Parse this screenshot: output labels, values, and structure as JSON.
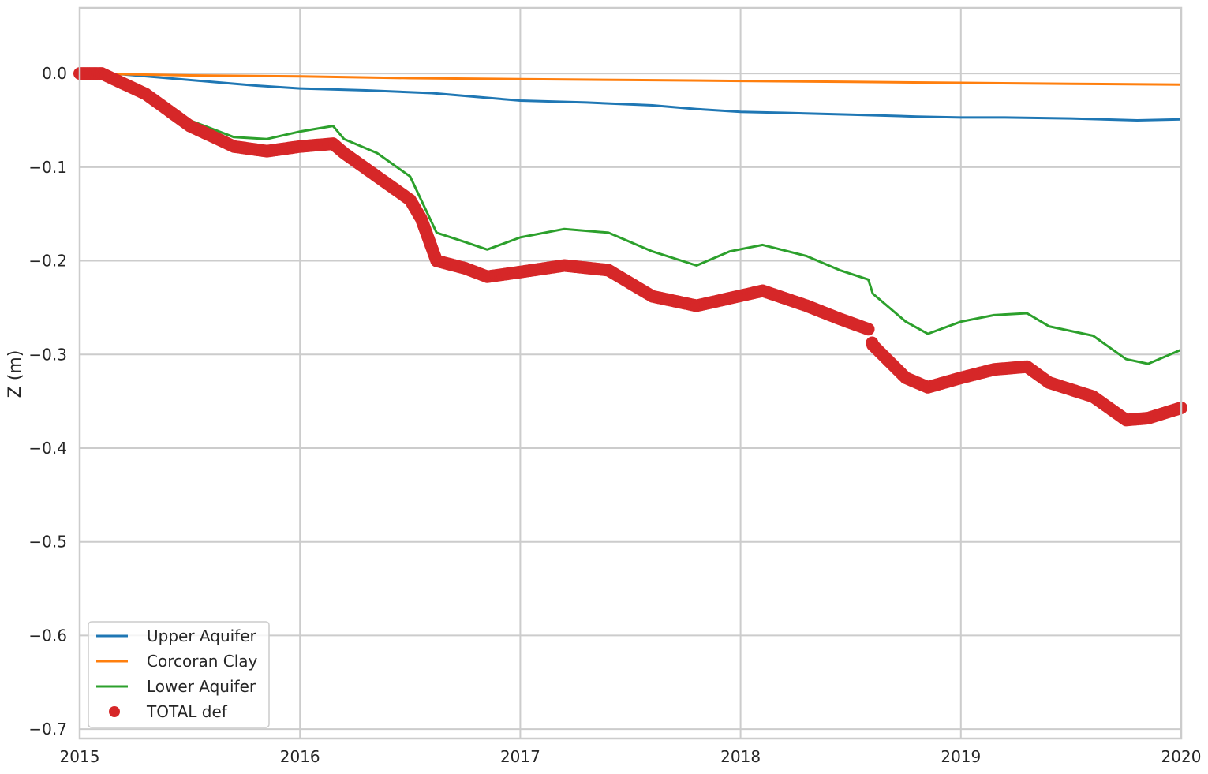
{
  "chart_data": {
    "type": "line",
    "title": "",
    "xlabel": "",
    "ylabel": "Z (m)",
    "xlim": [
      2015,
      2020
    ],
    "ylim": [
      -0.71,
      0.07
    ],
    "grid": true,
    "legend_position": "lower-left",
    "x_ticks": [
      2015,
      2016,
      2017,
      2018,
      2019,
      2020
    ],
    "x_tick_labels": [
      "2015",
      "2016",
      "2017",
      "2018",
      "2019",
      "2020"
    ],
    "y_ticks": [
      0.0,
      -0.1,
      -0.2,
      -0.3,
      -0.4,
      -0.5,
      -0.6,
      -0.7
    ],
    "y_tick_labels": [
      "0.0",
      "−0.1",
      "−0.2",
      "−0.3",
      "−0.4",
      "−0.5",
      "−0.6",
      "−0.7"
    ],
    "series": [
      {
        "name": "Upper Aquifer",
        "style": "line",
        "color": "#1f77b4",
        "x": [
          2015.0,
          2015.2,
          2015.4,
          2015.6,
          2015.8,
          2016.0,
          2016.3,
          2016.6,
          2016.8,
          2017.0,
          2017.3,
          2017.6,
          2017.8,
          2018.0,
          2018.2,
          2018.5,
          2018.8,
          2019.0,
          2019.2,
          2019.5,
          2019.8,
          2020.0
        ],
        "y": [
          0.0,
          -0.001,
          -0.005,
          -0.009,
          -0.013,
          -0.016,
          -0.018,
          -0.021,
          -0.025,
          -0.029,
          -0.031,
          -0.034,
          -0.038,
          -0.041,
          -0.042,
          -0.044,
          -0.046,
          -0.047,
          -0.047,
          -0.048,
          -0.05,
          -0.049
        ]
      },
      {
        "name": "Corcoran Clay",
        "style": "line",
        "color": "#ff7f0e",
        "x": [
          2015.0,
          2015.5,
          2016.0,
          2016.5,
          2017.0,
          2017.5,
          2018.0,
          2018.5,
          2019.0,
          2019.5,
          2020.0
        ],
        "y": [
          0.0,
          -0.002,
          -0.003,
          -0.005,
          -0.006,
          -0.007,
          -0.008,
          -0.009,
          -0.01,
          -0.011,
          -0.012
        ]
      },
      {
        "name": "Lower Aquifer",
        "style": "line",
        "color": "#2ca02c",
        "x": [
          2015.0,
          2015.1,
          2015.3,
          2015.5,
          2015.7,
          2015.85,
          2016.0,
          2016.15,
          2016.2,
          2016.35,
          2016.5,
          2016.62,
          2016.75,
          2016.85,
          2017.0,
          2017.2,
          2017.4,
          2017.6,
          2017.8,
          2017.95,
          2018.1,
          2018.3,
          2018.45,
          2018.58,
          2018.6,
          2018.75,
          2018.85,
          2019.0,
          2019.15,
          2019.3,
          2019.4,
          2019.6,
          2019.75,
          2019.85,
          2020.0
        ],
        "y": [
          0.0,
          0.0,
          -0.02,
          -0.05,
          -0.068,
          -0.07,
          -0.062,
          -0.056,
          -0.07,
          -0.085,
          -0.11,
          -0.17,
          -0.18,
          -0.188,
          -0.175,
          -0.166,
          -0.17,
          -0.19,
          -0.205,
          -0.19,
          -0.183,
          -0.195,
          -0.21,
          -0.22,
          -0.235,
          -0.265,
          -0.278,
          -0.265,
          -0.258,
          -0.256,
          -0.27,
          -0.28,
          -0.305,
          -0.31,
          -0.295
        ]
      },
      {
        "name": "TOTAL def",
        "style": "marker",
        "color": "#d62728",
        "x": [
          2015.0,
          2015.1,
          2015.3,
          2015.5,
          2015.7,
          2015.85,
          2016.0,
          2016.15,
          2016.2,
          2016.35,
          2016.5,
          2016.55,
          2016.62,
          2016.75,
          2016.85,
          2017.0,
          2017.2,
          2017.4,
          2017.6,
          2017.8,
          2017.95,
          2018.1,
          2018.3,
          2018.45,
          2018.58,
          2018.6,
          2018.75,
          2018.85,
          2019.0,
          2019.15,
          2019.3,
          2019.4,
          2019.6,
          2019.75,
          2019.85,
          2020.0
        ],
        "y": [
          0.0,
          0.0,
          -0.022,
          -0.056,
          -0.078,
          -0.083,
          -0.078,
          -0.075,
          -0.085,
          -0.11,
          -0.135,
          -0.155,
          -0.2,
          -0.208,
          -0.217,
          -0.212,
          -0.205,
          -0.21,
          -0.238,
          -0.248,
          -0.24,
          -0.232,
          -0.248,
          -0.262,
          -0.273,
          -0.29,
          -0.325,
          -0.335,
          -0.325,
          -0.316,
          -0.313,
          -0.33,
          -0.345,
          -0.37,
          -0.368,
          -0.357
        ]
      }
    ]
  }
}
